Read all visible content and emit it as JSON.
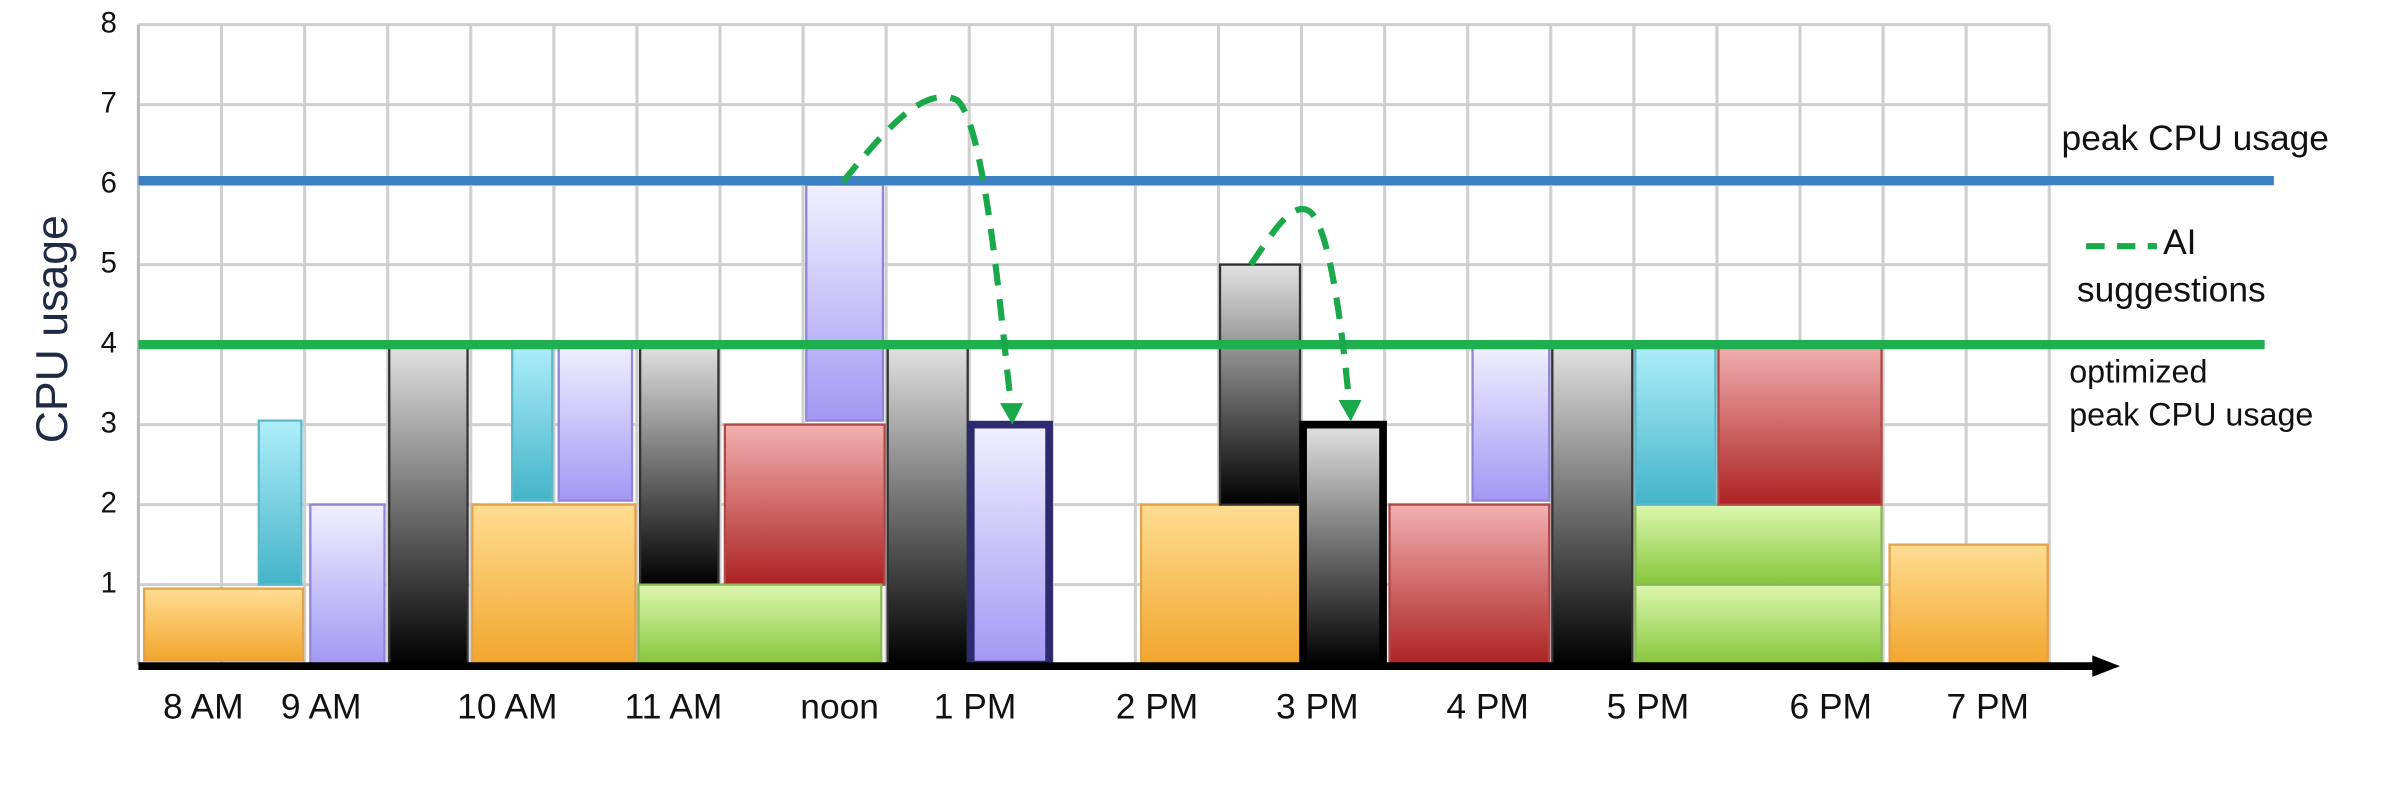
{
  "chart_data": {
    "type": "blocks",
    "y_label": "CPU usage",
    "xlim": [
      0,
      23
    ],
    "ylim": [
      0,
      8
    ],
    "yticks": [
      1,
      2,
      3,
      4,
      5,
      6,
      7,
      8
    ],
    "xticks": [
      {
        "value": 0.78,
        "label": "8 AM"
      },
      {
        "value": 2.2,
        "label": "9 AM"
      },
      {
        "value": 4.44,
        "label": "10 AM"
      },
      {
        "value": 6.44,
        "label": "11 AM"
      },
      {
        "value": 8.44,
        "label": "noon"
      },
      {
        "value": 10.07,
        "label": "1 PM"
      },
      {
        "value": 12.26,
        "label": "2 PM"
      },
      {
        "value": 14.19,
        "label": "3 PM"
      },
      {
        "value": 16.24,
        "label": "4 PM"
      },
      {
        "value": 18.17,
        "label": "5 PM"
      },
      {
        "value": 20.37,
        "label": "6 PM"
      },
      {
        "value": 22.26,
        "label": "7 PM"
      }
    ],
    "grid": true,
    "palette": {
      "orange": [
        "#ffdd92",
        "#f2a52c",
        "#e2a24a"
      ],
      "cyan": [
        "#aeeefb",
        "#44b4c8",
        "#5fb8c8"
      ],
      "lavender": [
        "#f1f0ff",
        "#a497f4",
        "#8f86d6"
      ],
      "gray": [
        "#e2e2e2",
        "#000000",
        "#333333"
      ],
      "red": [
        "#f3b0b0",
        "#ac2222",
        "#b04848"
      ],
      "green": [
        "#dcf7ae",
        "#86c63c",
        "#8cb85a"
      ]
    },
    "blocks": [
      {
        "kind": "orange",
        "x": [
          0.05,
          2.0
        ],
        "y": [
          0.05,
          0.95
        ]
      },
      {
        "kind": "cyan",
        "x": [
          1.43,
          1.98
        ],
        "y": [
          1.0,
          3.05
        ]
      },
      {
        "kind": "lavender",
        "x": [
          2.05,
          2.98
        ],
        "y": [
          0,
          2.0
        ]
      },
      {
        "kind": "gray",
        "x": [
          3.0,
          3.98
        ],
        "y": [
          0,
          4
        ]
      },
      {
        "kind": "orange",
        "x": [
          4.0,
          6.0
        ],
        "y": [
          0,
          2.0
        ]
      },
      {
        "kind": "cyan",
        "x": [
          4.48,
          5.0
        ],
        "y": [
          2.05,
          4
        ]
      },
      {
        "kind": "lavender",
        "x": [
          5.04,
          5.96
        ],
        "y": [
          2.05,
          4
        ]
      },
      {
        "kind": "gray",
        "x": [
          6.02,
          7.0
        ],
        "y": [
          1.0,
          4
        ]
      },
      {
        "kind": "red",
        "x": [
          7.04,
          9.0
        ],
        "y": [
          1.0,
          3.0
        ]
      },
      {
        "kind": "green",
        "x": [
          6.0,
          8.96
        ],
        "y": [
          0,
          1.0
        ]
      },
      {
        "kind": "lavender",
        "x": [
          8.02,
          8.98
        ],
        "y": [
          3.05,
          6.0
        ]
      },
      {
        "kind": "gray",
        "x": [
          9.0,
          10.0
        ],
        "y": [
          0,
          4
        ]
      },
      {
        "kind": "lavender",
        "x": [
          10.0,
          10.98
        ],
        "y": [
          0,
          3.0
        ],
        "highlight": "#2e2a70"
      },
      {
        "kind": "orange",
        "x": [
          12.05,
          14.0
        ],
        "y": [
          0,
          2.0
        ]
      },
      {
        "kind": "gray",
        "x": [
          13.0,
          14.0
        ],
        "y": [
          2.0,
          5.0
        ]
      },
      {
        "kind": "gray",
        "x": [
          14.0,
          15.0
        ],
        "y": [
          0,
          3.0
        ],
        "highlight": "#000000"
      },
      {
        "kind": "red",
        "x": [
          15.04,
          17.0
        ],
        "y": [
          0,
          2.0
        ]
      },
      {
        "kind": "lavender",
        "x": [
          16.04,
          17.0
        ],
        "y": [
          2.05,
          4
        ]
      },
      {
        "kind": "gray",
        "x": [
          17.0,
          18.0
        ],
        "y": [
          0,
          4
        ]
      },
      {
        "kind": "green",
        "x": [
          18.0,
          21.0
        ],
        "y": [
          0,
          1.0
        ]
      },
      {
        "kind": "green",
        "x": [
          18.0,
          21.0
        ],
        "y": [
          1.0,
          2.0
        ]
      },
      {
        "kind": "cyan",
        "x": [
          18.0,
          19.0
        ],
        "y": [
          2.0,
          4
        ]
      },
      {
        "kind": "red",
        "x": [
          19.0,
          21.0
        ],
        "y": [
          2.0,
          4
        ]
      },
      {
        "kind": "orange",
        "x": [
          21.06,
          23.0
        ],
        "y": [
          0,
          1.5
        ]
      }
    ],
    "reference_lines": [
      {
        "label": [
          "peak CPU usage"
        ],
        "value": 6.05,
        "color": "#3b7fc0"
      },
      {
        "label": [
          "optimized",
          "peak CPU usage"
        ],
        "value": 4.0,
        "color": "#1fae50"
      }
    ],
    "legend": {
      "label": [
        "AI",
        "suggestions"
      ],
      "color": "#19a84a"
    }
  }
}
